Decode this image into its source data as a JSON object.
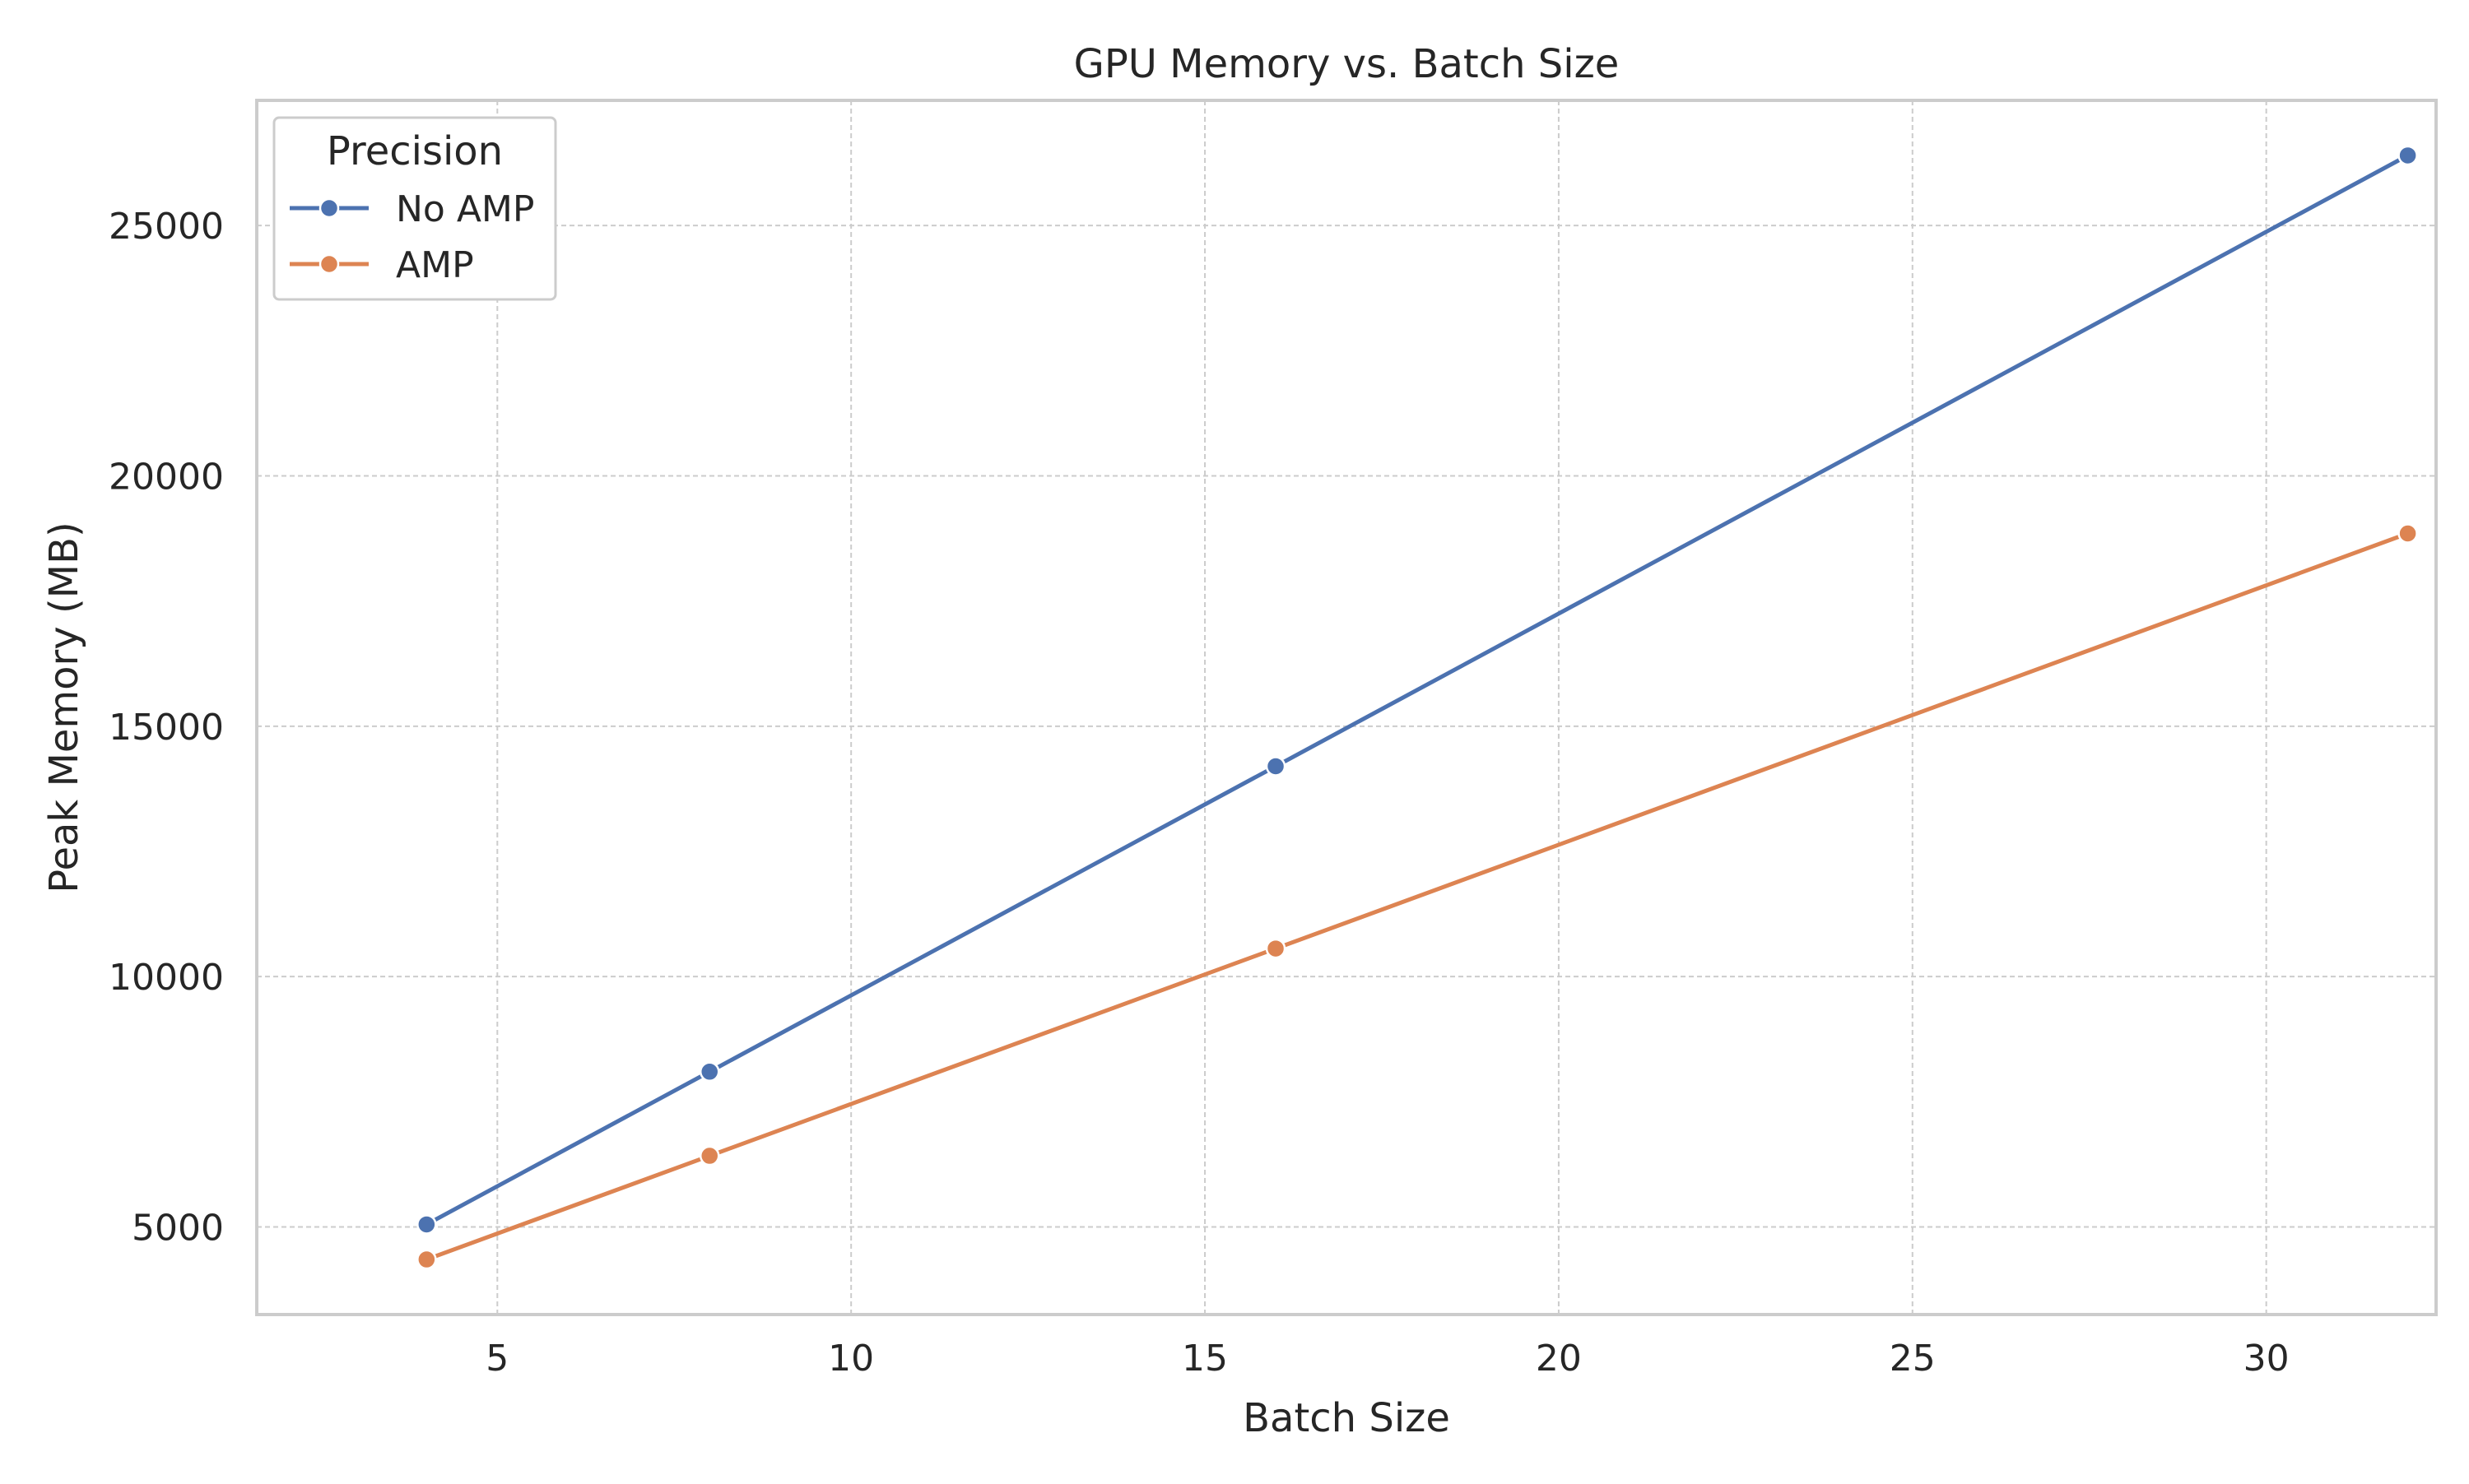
{
  "chart_data": {
    "type": "line",
    "title": "GPU Memory vs. Batch Size",
    "xlabel": "Batch Size",
    "ylabel": "Peak Memory (MB)",
    "x": [
      4,
      8,
      16,
      32
    ],
    "series": [
      {
        "name": "No AMP",
        "color": "#4c72b0",
        "values": [
          5050,
          8100,
          14200,
          26400
        ]
      },
      {
        "name": "AMP",
        "color": "#dd8452",
        "values": [
          4350,
          6420,
          10560,
          18850
        ]
      }
    ],
    "xlim": [
      1.6,
      32.4
    ],
    "ylim": [
      3250,
      27500
    ],
    "xticks": [
      5,
      10,
      15,
      20,
      25,
      30
    ],
    "yticks": [
      5000,
      10000,
      15000,
      20000,
      25000
    ],
    "legend": {
      "title": "Precision",
      "placement": "top-left"
    },
    "grid": true,
    "markers": true
  }
}
